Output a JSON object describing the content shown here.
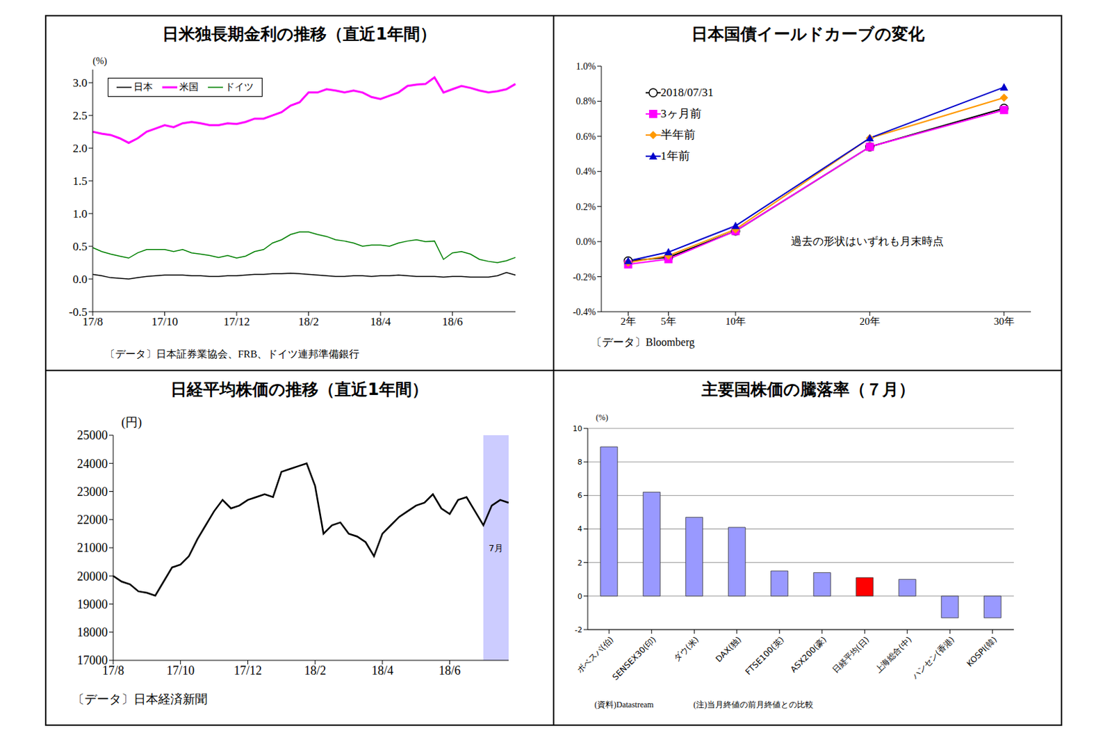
{
  "chart_data": [
    {
      "type": "line",
      "title": "日米独長期金利の推移（直近1年間）",
      "y_label": "(%)",
      "annotations": [
        "〔データ〕日本証券業協会、FRB、ドイツ連邦準備銀行"
      ],
      "categories": [
        "17/8",
        null,
        null,
        null,
        null,
        null,
        null,
        null,
        "17/10",
        null,
        null,
        null,
        null,
        null,
        null,
        null,
        "17/12",
        null,
        null,
        null,
        null,
        null,
        null,
        null,
        "18/2",
        null,
        null,
        null,
        null,
        null,
        null,
        null,
        "18/4",
        null,
        null,
        null,
        null,
        null,
        null,
        null,
        "18/6",
        null,
        null,
        null,
        null,
        null,
        null,
        null
      ],
      "series": [
        {
          "name": "日本",
          "color": "#000000",
          "values": [
            0.07,
            0.05,
            0.02,
            0.01,
            0.0,
            0.02,
            0.04,
            0.05,
            0.06,
            0.06,
            0.06,
            0.05,
            0.05,
            0.04,
            0.04,
            0.05,
            0.05,
            0.06,
            0.07,
            0.07,
            0.08,
            0.08,
            0.09,
            0.08,
            0.07,
            0.06,
            0.05,
            0.04,
            0.04,
            0.05,
            0.05,
            0.04,
            0.05,
            0.05,
            0.06,
            0.05,
            0.04,
            0.04,
            0.04,
            0.03,
            0.04,
            0.04,
            0.03,
            0.03,
            0.03,
            0.05,
            0.1,
            0.06
          ]
        },
        {
          "name": "米国",
          "color": "#ff00ff",
          "values": [
            2.25,
            2.22,
            2.2,
            2.15,
            2.08,
            2.15,
            2.25,
            2.3,
            2.35,
            2.32,
            2.38,
            2.4,
            2.38,
            2.35,
            2.35,
            2.38,
            2.37,
            2.4,
            2.45,
            2.45,
            2.5,
            2.55,
            2.65,
            2.7,
            2.85,
            2.85,
            2.9,
            2.88,
            2.85,
            2.88,
            2.85,
            2.78,
            2.75,
            2.8,
            2.85,
            2.95,
            2.97,
            2.98,
            3.08,
            2.85,
            2.9,
            2.95,
            2.92,
            2.88,
            2.85,
            2.87,
            2.9,
            2.98
          ]
        },
        {
          "name": "ドイツ",
          "color": "#008000",
          "values": [
            0.48,
            0.42,
            0.38,
            0.35,
            0.32,
            0.4,
            0.45,
            0.45,
            0.45,
            0.42,
            0.45,
            0.4,
            0.38,
            0.36,
            0.33,
            0.36,
            0.32,
            0.35,
            0.42,
            0.45,
            0.55,
            0.6,
            0.68,
            0.72,
            0.72,
            0.68,
            0.65,
            0.6,
            0.58,
            0.55,
            0.5,
            0.52,
            0.52,
            0.5,
            0.55,
            0.58,
            0.6,
            0.57,
            0.58,
            0.3,
            0.4,
            0.42,
            0.38,
            0.3,
            0.27,
            0.25,
            0.28,
            0.33
          ]
        }
      ],
      "ylim": [
        -0.5,
        3.2
      ],
      "yticks": [
        {
          "value": -0.5,
          "label": "-0.5"
        },
        {
          "value": 0,
          "label": "0.0"
        },
        0.5,
        {
          "value": 1,
          "label": "1.0"
        },
        1.5,
        {
          "value": 2,
          "label": "2.0"
        },
        2.5,
        {
          "value": 3,
          "label": "3.0"
        }
      ],
      "legend": "upper left",
      "grid": false
    },
    {
      "type": "line",
      "title": "日本国債イールドカーブの変化",
      "annotations": [
        "過去の形状はいずれも月末時点",
        "〔データ〕Bloomberg"
      ],
      "x": [
        2,
        5,
        10,
        20,
        30
      ],
      "series": [
        {
          "name": "2018/07/31",
          "color": "#000000",
          "marker": "open_circle",
          "values": [
            -0.11,
            -0.09,
            0.06,
            0.54,
            0.76
          ]
        },
        {
          "name": "3ヶ月前",
          "color": "#ff00ff",
          "marker": "square",
          "values": [
            -0.13,
            -0.1,
            0.06,
            0.54,
            0.75
          ]
        },
        {
          "name": "半年前",
          "color": "#ff9900",
          "marker": "diamond",
          "values": [
            -0.12,
            -0.08,
            0.07,
            0.59,
            0.82
          ]
        },
        {
          "name": "1年前",
          "color": "#0000cc",
          "marker": "triangle",
          "values": [
            -0.11,
            -0.06,
            0.09,
            0.59,
            0.88
          ]
        }
      ],
      "xlim": [
        0,
        32
      ],
      "xticks": [
        {
          "value": 2,
          "label": "2年"
        },
        {
          "value": 5,
          "label": "5年"
        },
        {
          "value": 10,
          "label": "10年"
        },
        {
          "value": 20,
          "label": "20年"
        },
        {
          "value": 30,
          "label": "30年"
        }
      ],
      "ylim": [
        -0.4,
        1.0
      ],
      "yticks": [
        {
          "value": -0.4,
          "label": "-0.4%"
        },
        {
          "value": -0.2,
          "label": "-0.2%"
        },
        {
          "value": 0,
          "label": "0.0%"
        },
        {
          "value": 0.2,
          "label": "0.2%"
        },
        {
          "value": 0.4,
          "label": "0.4%"
        },
        {
          "value": 0.6,
          "label": "0.6%"
        },
        {
          "value": 0.8,
          "label": "0.8%"
        },
        {
          "value": 1.0,
          "label": "1.0%"
        }
      ],
      "legend": "upper left",
      "grid": false
    },
    {
      "type": "line",
      "title": "日経平均株価の推移（直近1年間）",
      "y_label": "(円)",
      "annotations": [
        "7月",
        "〔データ〕日本経済新聞"
      ],
      "categories": [
        "17/8",
        null,
        null,
        null,
        null,
        null,
        null,
        null,
        "17/10",
        null,
        null,
        null,
        null,
        null,
        null,
        null,
        "17/12",
        null,
        null,
        null,
        null,
        null,
        null,
        null,
        "18/2",
        null,
        null,
        null,
        null,
        null,
        null,
        null,
        "18/4",
        null,
        null,
        null,
        null,
        null,
        null,
        null,
        "18/6",
        null,
        null,
        null,
        null,
        null,
        null,
        null
      ],
      "values": [
        20000,
        19800,
        19700,
        19450,
        19400,
        19300,
        19800,
        20300,
        20400,
        20700,
        21300,
        21800,
        22300,
        22700,
        22400,
        22500,
        22700,
        22800,
        22900,
        22800,
        23700,
        23800,
        23900,
        24000,
        23200,
        21500,
        21800,
        21900,
        21500,
        21400,
        21200,
        20700,
        21500,
        21800,
        22100,
        22300,
        22500,
        22600,
        22900,
        22400,
        22200,
        22700,
        22800,
        22300,
        21800,
        22500,
        22700,
        22600
      ],
      "color": "#000000",
      "ylim": [
        17000,
        25000
      ],
      "yticks": [
        17000,
        18000,
        19000,
        20000,
        21000,
        22000,
        23000,
        24000,
        25000
      ],
      "grid": false
    },
    {
      "type": "bar",
      "title": "主要国株価の騰落率（７月）",
      "y_label": "(%)",
      "annotations": [
        "(資料)Datastream",
        "(注)当月終値の前月終値との比較"
      ],
      "categories": [
        "ボベスパ(伯)",
        "SENSEX30(印)",
        "ダウ(米)",
        "DAX(独)",
        "FTSE100(英)",
        "ASX200(豪)",
        "日経平均(日)",
        "上海総合(中)",
        "ハンセン(香港)",
        "KOSPI(韓)"
      ],
      "values": [
        8.9,
        6.2,
        4.7,
        4.1,
        1.5,
        1.4,
        1.1,
        1.0,
        -1.3,
        -1.3
      ],
      "colors": [
        "#9999ff",
        "#9999ff",
        "#9999ff",
        "#9999ff",
        "#9999ff",
        "#9999ff",
        "#ff0000",
        "#9999ff",
        "#9999ff",
        "#9999ff"
      ],
      "ylim": [
        -2,
        10
      ],
      "yticks": [
        -2,
        0,
        2,
        4,
        6,
        8,
        10
      ],
      "grid": true
    }
  ]
}
